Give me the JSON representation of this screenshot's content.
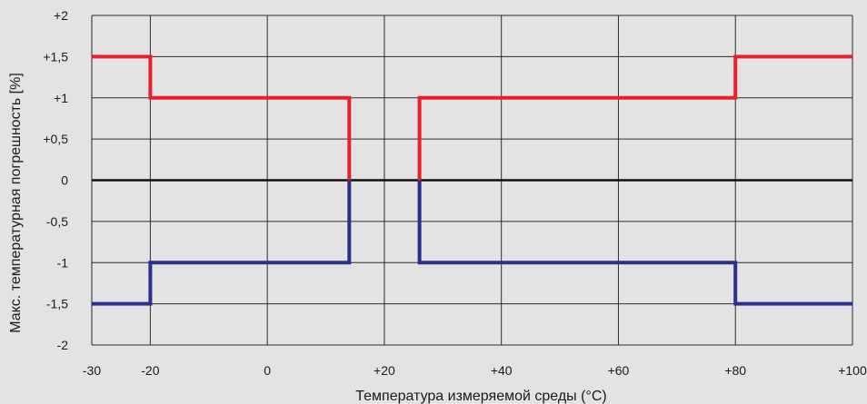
{
  "chart_data": {
    "type": "line",
    "title": "",
    "xlabel": "Температура измеряемой среды (°С)",
    "ylabel": "Макс. температурная погрешность [%]",
    "xlim": [
      -30,
      100
    ],
    "ylim": [
      -2,
      2
    ],
    "grid": true,
    "legend": "none",
    "x_ticks": [
      {
        "value": -30,
        "label": "-30"
      },
      {
        "value": -20,
        "label": "-20"
      },
      {
        "value": 0,
        "label": "0"
      },
      {
        "value": 20,
        "label": "+20"
      },
      {
        "value": 40,
        "label": "+40"
      },
      {
        "value": 60,
        "label": "+60"
      },
      {
        "value": 80,
        "label": "+80"
      },
      {
        "value": 100,
        "label": "+100"
      }
    ],
    "y_ticks": [
      {
        "value": 2,
        "label": "+2"
      },
      {
        "value": 1.5,
        "label": "+1,5"
      },
      {
        "value": 1,
        "label": "+1"
      },
      {
        "value": 0.5,
        "label": "+0,5"
      },
      {
        "value": 0,
        "label": "0"
      },
      {
        "value": -0.5,
        "label": "-0,5"
      },
      {
        "value": -1,
        "label": "-1"
      },
      {
        "value": -1.5,
        "label": "-1,5"
      },
      {
        "value": -2,
        "label": "-2"
      }
    ],
    "series": [
      {
        "color": "#e8202a",
        "points": [
          [
            -30,
            1.5
          ],
          [
            -20,
            1.5
          ],
          [
            -20,
            1
          ],
          [
            14,
            1
          ],
          [
            14,
            0
          ],
          null,
          [
            26,
            0
          ],
          [
            26,
            1
          ],
          [
            80,
            1
          ],
          [
            80,
            1.5
          ],
          [
            100,
            1.5
          ]
        ]
      },
      {
        "color": "#2b2f8f",
        "points": [
          [
            -30,
            -1.5
          ],
          [
            -20,
            -1.5
          ],
          [
            -20,
            -1
          ],
          [
            14,
            -1
          ],
          [
            14,
            0
          ],
          null,
          [
            26,
            0
          ],
          [
            26,
            -1
          ],
          [
            80,
            -1
          ],
          [
            80,
            -1.5
          ],
          [
            100,
            -1.5
          ]
        ]
      }
    ],
    "zero_line_color": "#111111",
    "grid_color": "#2a2a2a",
    "background": "#e3e3e3"
  }
}
